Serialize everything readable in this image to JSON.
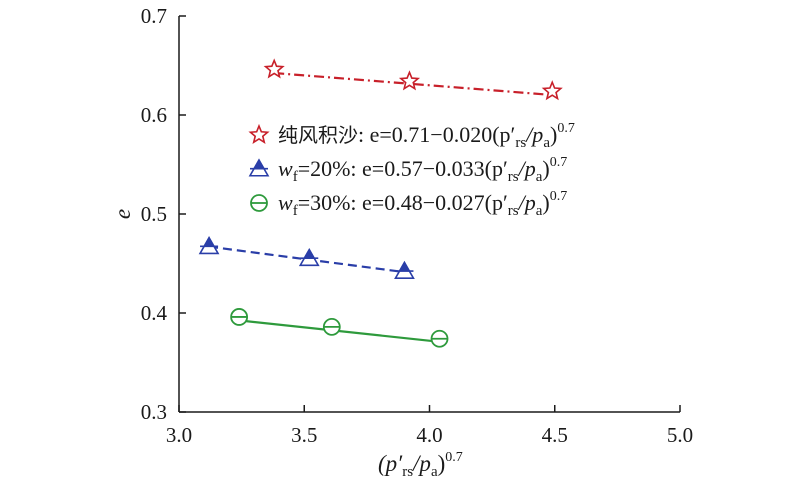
{
  "chart_data": {
    "type": "scatter",
    "ylabel": "e",
    "xlabel_parts": [
      "(p′",
      "rs",
      "/p",
      "a",
      ")",
      "0.7"
    ],
    "xlim": [
      3.0,
      5.0
    ],
    "ylim": [
      0.3,
      0.7
    ],
    "xticks": [
      3.0,
      3.5,
      4.0,
      4.5,
      5.0
    ],
    "xtick_labels": [
      "3.0",
      "3.5",
      "4.0",
      "4.5",
      "5.0"
    ],
    "yticks": [
      0.3,
      0.4,
      0.5,
      0.6,
      0.7
    ],
    "ytick_labels": [
      "0.3",
      "0.4",
      "0.5",
      "0.6",
      "0.7"
    ],
    "grid": false,
    "legend_position": "center",
    "series": [
      {
        "label_prefix": "纯风积沙",
        "label_main": ": e=0.71−0.020(p′",
        "label_sub1": "rs",
        "label_mid": "/p",
        "label_sub2": "a",
        "label_close": ")",
        "label_sup": "0.7",
        "color": "#c8202a",
        "marker": "star-hollow",
        "line_style": "dash-dot",
        "fit": {
          "a": 0.71,
          "b": 0.02,
          "x_range": [
            3.38,
            4.49
          ]
        },
        "x": [
          3.38,
          3.92,
          4.49
        ],
        "y": [
          0.646,
          0.634,
          0.624
        ]
      },
      {
        "label_prefix_italic": "w",
        "label_prefix_sub": "f",
        "label_main": "=20%: e=0.57−0.033(p′",
        "label_sub1": "rs",
        "label_mid": "/p",
        "label_sub2": "a",
        "label_close": ")",
        "label_sup": "0.7",
        "color": "#2a3ea8",
        "marker": "triangle-half",
        "line_style": "dashed",
        "fit": {
          "a": 0.57,
          "b": 0.033,
          "x_range": [
            3.12,
            3.9
          ]
        },
        "x": [
          3.12,
          3.52,
          3.9
        ],
        "y": [
          0.467,
          0.455,
          0.442
        ]
      },
      {
        "label_prefix_italic": "w",
        "label_prefix_sub": "f",
        "label_main": "=30%: e=0.48−0.027(p′",
        "label_sub1": "rs",
        "label_mid": "/p",
        "label_sub2": "a",
        "label_close": ")",
        "label_sup": "0.7",
        "color": "#2e9a3c",
        "marker": "circle-half",
        "line_style": "solid",
        "fit": {
          "a": 0.48,
          "b": 0.027,
          "x_range": [
            3.24,
            4.04
          ]
        },
        "x": [
          3.24,
          3.61,
          4.04
        ],
        "y": [
          0.396,
          0.386,
          0.374
        ]
      }
    ]
  }
}
